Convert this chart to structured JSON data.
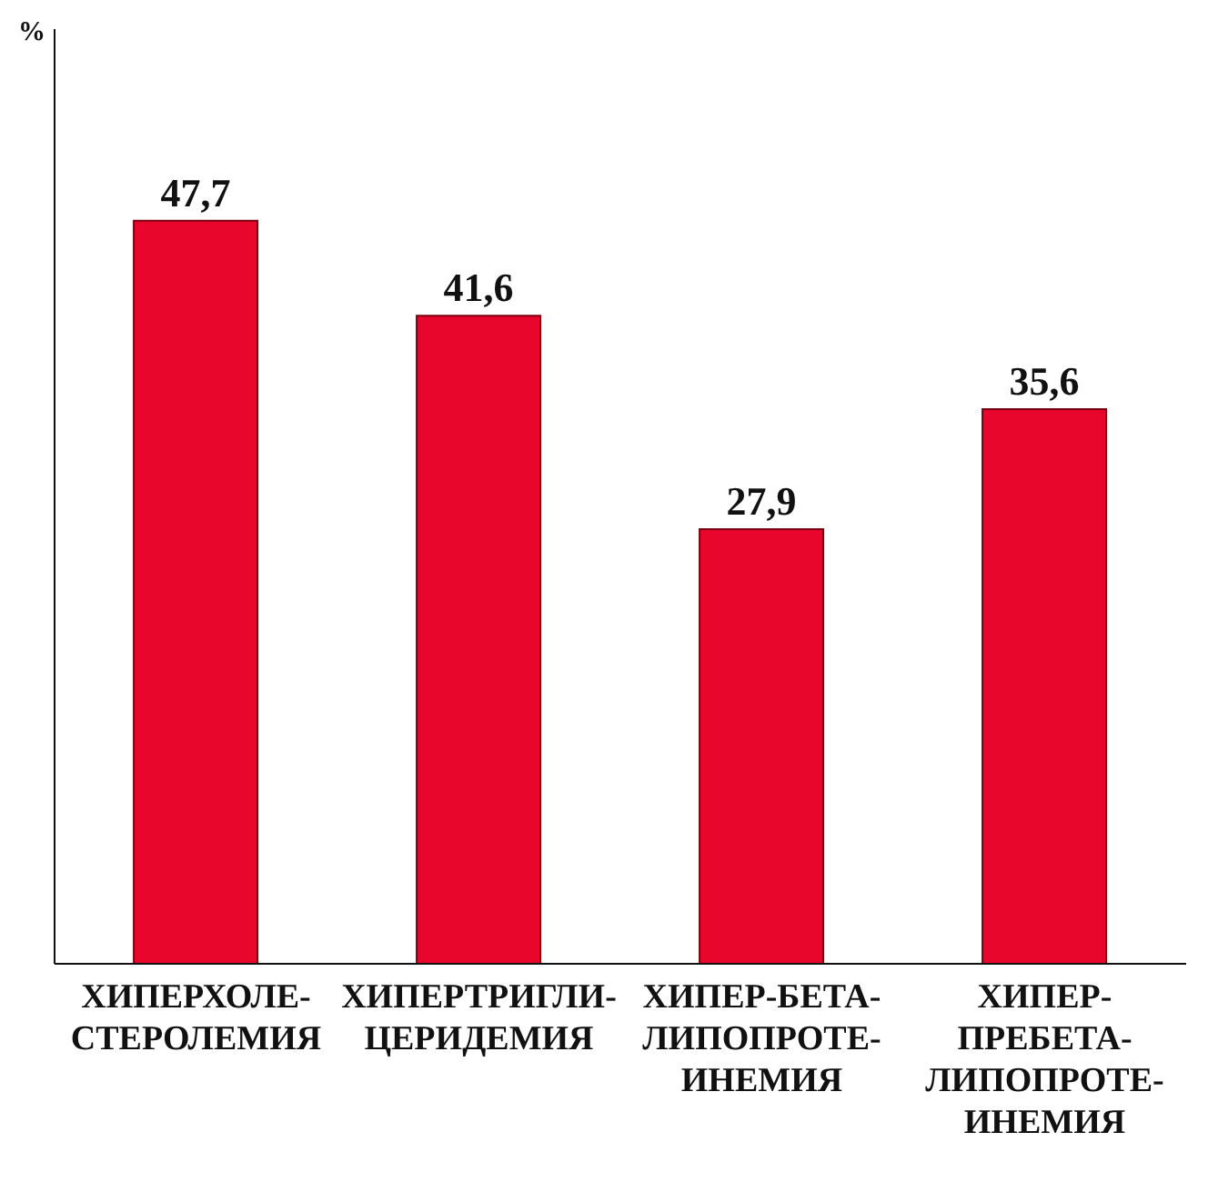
{
  "chart_data": {
    "type": "bar",
    "annotations": [
      "%"
    ],
    "categories": [
      "ХИПЕРХОЛЕ-\nСТЕРОЛЕМИЯ",
      "ХИПЕРТРИГЛИ-\nЦЕРИДЕМИЯ",
      "ХИПЕР-БЕТА-\nЛИПОПРОТЕ-\nИНЕМИЯ",
      "ХИПЕР-\nПРЕБЕТА-\nЛИПОПРОТЕ-\nИНЕМИЯ"
    ],
    "values": [
      47.7,
      41.6,
      27.9,
      35.6
    ],
    "color": "#e8062c",
    "value_labels": [
      "47,7",
      "41,6",
      "27,9",
      "35,6"
    ],
    "grid": false,
    "legend": false
  }
}
